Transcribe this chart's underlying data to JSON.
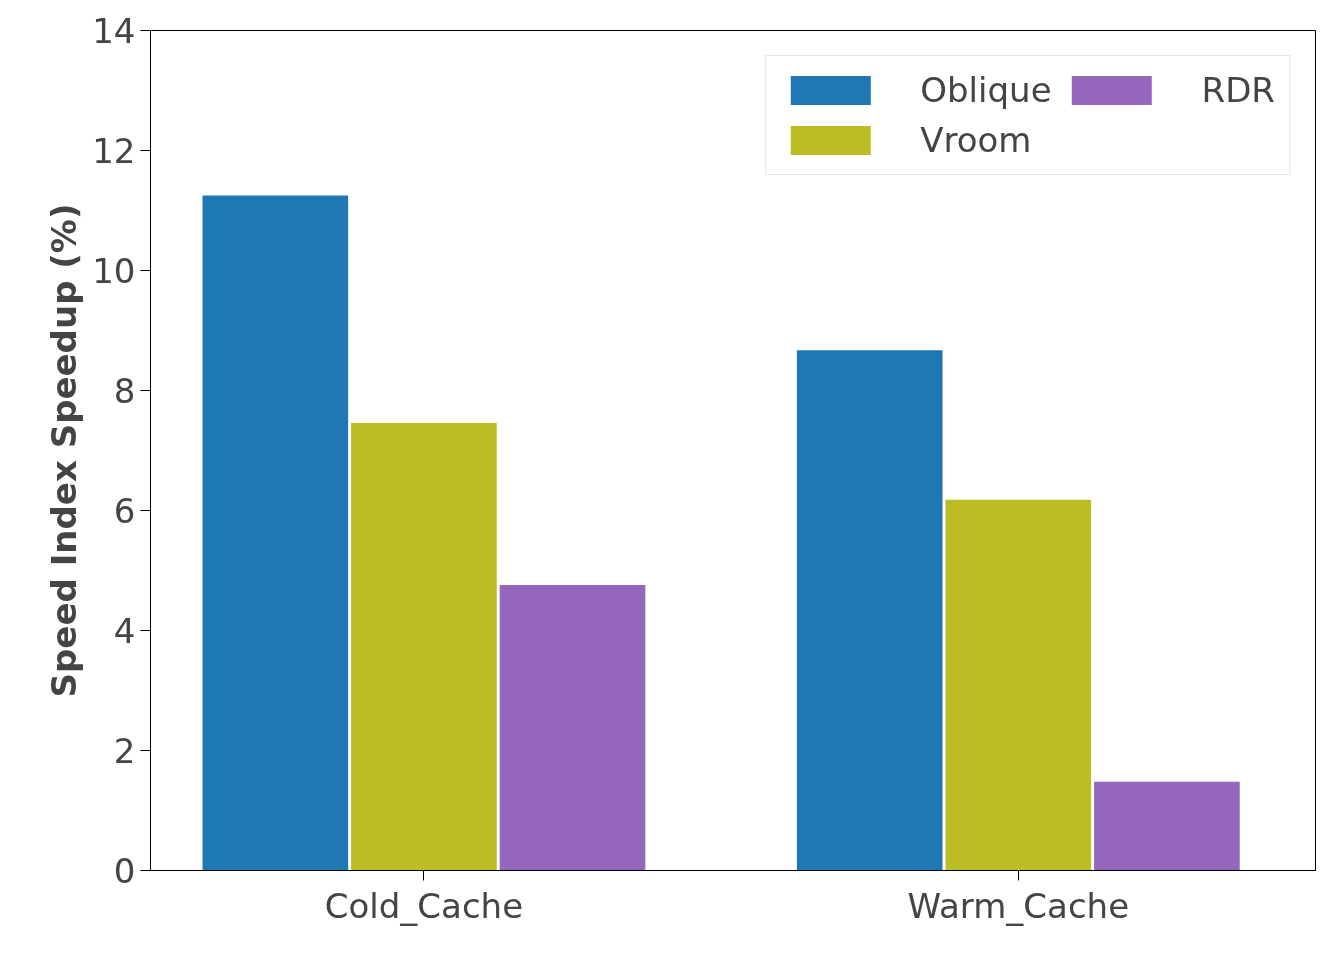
{
  "chart_data": {
    "type": "bar",
    "ylabel": "Speed Index Speedup (%)",
    "categories": [
      "Cold_Cache",
      "Warm_Cache"
    ],
    "series": [
      {
        "name": "Oblique",
        "color": "#1f77b4",
        "values": [
          11.25,
          8.67
        ]
      },
      {
        "name": "Vroom",
        "color": "#bcbd22",
        "values": [
          7.46,
          6.18
        ]
      },
      {
        "name": "RDR",
        "color": "#9467bd",
        "values": [
          4.76,
          1.48
        ]
      }
    ],
    "ylim": [
      0,
      14
    ],
    "yticks": [
      0,
      2,
      4,
      6,
      8,
      10,
      12,
      14
    ],
    "grid": false,
    "legend": "top right"
  }
}
